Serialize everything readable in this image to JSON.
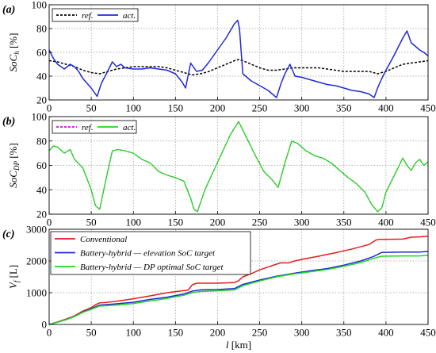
{
  "chart_data": [
    {
      "panel_label": "(a)",
      "type": "line",
      "title": "",
      "ylabel": "SoC_h [%]",
      "xlabel": "",
      "xlim": [
        0,
        450
      ],
      "ylim": [
        20,
        100
      ],
      "xticks": [
        0,
        50,
        100,
        150,
        200,
        250,
        300,
        350,
        400,
        450
      ],
      "yticks": [
        20,
        40,
        60,
        80,
        100
      ],
      "grid": true,
      "legend": "top-left",
      "series": [
        {
          "name": "ref.",
          "color": "#000000",
          "style": "dashed",
          "x": [
            0,
            10,
            20,
            30,
            40,
            50,
            60,
            70,
            80,
            90,
            100,
            110,
            120,
            130,
            140,
            150,
            160,
            170,
            180,
            190,
            200,
            210,
            220,
            225,
            230,
            240,
            250,
            260,
            270,
            280,
            290,
            300,
            310,
            320,
            330,
            340,
            350,
            360,
            370,
            380,
            390,
            400,
            410,
            420,
            430,
            440,
            450
          ],
          "y": [
            53,
            52,
            50,
            48,
            45,
            43,
            42,
            44,
            46,
            47,
            48,
            48,
            48,
            48,
            47,
            45,
            43,
            41,
            42,
            44,
            47,
            50,
            53,
            54,
            53,
            50,
            47,
            45,
            45,
            46,
            47,
            47,
            47,
            47,
            46,
            45,
            44,
            44,
            44,
            44,
            42,
            44,
            47,
            50,
            51,
            52,
            53
          ]
        },
        {
          "name": "act.",
          "color": "#1f2ad6",
          "style": "solid",
          "x": [
            0,
            5,
            10,
            18,
            25,
            30,
            35,
            40,
            50,
            57,
            62,
            68,
            75,
            80,
            85,
            90,
            100,
            110,
            120,
            130,
            140,
            150,
            158,
            162,
            168,
            175,
            182,
            190,
            200,
            210,
            220,
            224,
            226,
            230,
            240,
            250,
            260,
            270,
            275,
            280,
            286,
            292,
            300,
            310,
            320,
            330,
            340,
            350,
            360,
            370,
            380,
            386,
            390,
            395,
            400,
            410,
            420,
            425,
            430,
            440,
            445,
            450
          ],
          "y": [
            62,
            55,
            50,
            46,
            50,
            48,
            44,
            38,
            30,
            23,
            34,
            42,
            52,
            48,
            50,
            47,
            46,
            46,
            47,
            46,
            45,
            42,
            35,
            30,
            51,
            44,
            45,
            52,
            62,
            72,
            84,
            87,
            80,
            42,
            36,
            32,
            28,
            22,
            33,
            42,
            50,
            40,
            39,
            37,
            35,
            33,
            32,
            30,
            28,
            27,
            25,
            22,
            30,
            38,
            45,
            58,
            72,
            78,
            68,
            62,
            60,
            57
          ]
        }
      ]
    },
    {
      "panel_label": "(b)",
      "type": "line",
      "title": "",
      "ylabel": "SoC_DP [%]",
      "xlabel": "",
      "xlim": [
        0,
        450
      ],
      "ylim": [
        20,
        100
      ],
      "xticks": [
        0,
        50,
        100,
        150,
        200,
        250,
        300,
        350,
        400,
        450
      ],
      "yticks": [
        20,
        40,
        60,
        80,
        100
      ],
      "grid": true,
      "legend": "top-left",
      "series": [
        {
          "name": "ref.",
          "color": "#e000e0",
          "style": "dashed",
          "x": [
            0,
            5,
            10,
            18,
            25,
            30,
            40,
            50,
            55,
            60,
            68,
            75,
            82,
            90,
            100,
            110,
            120,
            130,
            140,
            150,
            160,
            168,
            172,
            176,
            185,
            195,
            205,
            215,
            225,
            235,
            245,
            255,
            265,
            272,
            280,
            288,
            295,
            305,
            315,
            325,
            335,
            345,
            355,
            365,
            375,
            383,
            390,
            395,
            400,
            410,
            420,
            425,
            430,
            435,
            440,
            445,
            450
          ],
          "y": [
            72,
            76,
            75,
            70,
            73,
            65,
            58,
            40,
            27,
            24,
            50,
            72,
            73,
            72,
            70,
            65,
            62,
            55,
            52,
            50,
            47,
            33,
            24,
            22,
            40,
            55,
            70,
            85,
            96,
            82,
            68,
            55,
            48,
            42,
            62,
            80,
            78,
            72,
            68,
            66,
            62,
            56,
            50,
            45,
            38,
            28,
            22,
            25,
            38,
            52,
            66,
            60,
            56,
            62,
            65,
            60,
            63
          ]
        },
        {
          "name": "act.",
          "color": "#1fd81f",
          "style": "solid",
          "x": [
            0,
            5,
            10,
            18,
            25,
            30,
            40,
            50,
            55,
            60,
            68,
            75,
            82,
            90,
            100,
            110,
            120,
            130,
            140,
            150,
            160,
            168,
            172,
            176,
            185,
            195,
            205,
            215,
            225,
            235,
            245,
            255,
            265,
            272,
            280,
            288,
            295,
            305,
            315,
            325,
            335,
            345,
            355,
            365,
            375,
            383,
            390,
            395,
            400,
            410,
            420,
            425,
            430,
            435,
            440,
            445,
            450
          ],
          "y": [
            72,
            76,
            75,
            70,
            73,
            65,
            58,
            40,
            27,
            24,
            50,
            72,
            73,
            72,
            70,
            65,
            62,
            55,
            52,
            50,
            47,
            33,
            24,
            22,
            40,
            55,
            70,
            85,
            96,
            82,
            68,
            55,
            48,
            42,
            62,
            80,
            78,
            72,
            68,
            66,
            62,
            56,
            50,
            45,
            38,
            28,
            22,
            25,
            38,
            52,
            66,
            60,
            56,
            62,
            65,
            60,
            63
          ]
        }
      ]
    },
    {
      "panel_label": "(c)",
      "type": "line",
      "title": "",
      "ylabel": "V_f [L]",
      "xlabel": "l [km]",
      "xlim": [
        0,
        450
      ],
      "ylim": [
        0,
        3000
      ],
      "xticks": [
        0,
        50,
        100,
        150,
        200,
        250,
        300,
        350,
        400,
        450
      ],
      "yticks": [
        0,
        1000,
        2000,
        3000
      ],
      "grid": true,
      "legend": "top-left",
      "series": [
        {
          "name": "Conventional",
          "color": "#e81c1c",
          "style": "solid",
          "x": [
            0,
            10,
            20,
            30,
            40,
            50,
            55,
            60,
            70,
            80,
            100,
            120,
            140,
            155,
            165,
            170,
            175,
            200,
            220,
            225,
            230,
            240,
            250,
            260,
            270,
            275,
            285,
            290,
            300,
            320,
            340,
            360,
            380,
            388,
            392,
            400,
            420,
            430,
            440,
            450
          ],
          "y": [
            0,
            80,
            170,
            270,
            420,
            530,
            620,
            680,
            700,
            730,
            810,
            900,
            1000,
            1050,
            1080,
            1250,
            1300,
            1300,
            1320,
            1380,
            1500,
            1600,
            1720,
            1810,
            1900,
            1940,
            1940,
            1990,
            2050,
            2150,
            2260,
            2380,
            2520,
            2660,
            2680,
            2680,
            2690,
            2750,
            2760,
            2780
          ]
        },
        {
          "name": "Battery-hybrid — elevation SoC target",
          "color": "#1f2ad6",
          "style": "solid",
          "x": [
            0,
            10,
            20,
            30,
            40,
            50,
            60,
            80,
            100,
            120,
            140,
            160,
            170,
            180,
            200,
            220,
            230,
            250,
            270,
            290,
            310,
            330,
            350,
            370,
            385,
            395,
            420,
            440,
            450
          ],
          "y": [
            0,
            70,
            150,
            250,
            390,
            500,
            610,
            650,
            700,
            790,
            860,
            960,
            1050,
            1090,
            1100,
            1130,
            1260,
            1400,
            1520,
            1610,
            1690,
            1760,
            1870,
            2000,
            2140,
            2270,
            2280,
            2280,
            2300
          ]
        },
        {
          "name": "Battery-hybrid — DP optimal SoC target",
          "color": "#1fd81f",
          "style": "solid",
          "x": [
            0,
            10,
            20,
            30,
            40,
            50,
            60,
            80,
            100,
            120,
            140,
            160,
            170,
            180,
            200,
            220,
            230,
            250,
            270,
            290,
            310,
            330,
            350,
            370,
            385,
            395,
            420,
            440,
            450
          ],
          "y": [
            0,
            70,
            150,
            250,
            380,
            480,
            580,
            610,
            660,
            740,
            820,
            920,
            1000,
            1040,
            1060,
            1090,
            1220,
            1370,
            1500,
            1590,
            1660,
            1730,
            1830,
            1950,
            2080,
            2150,
            2160,
            2160,
            2180
          ]
        }
      ]
    }
  ]
}
